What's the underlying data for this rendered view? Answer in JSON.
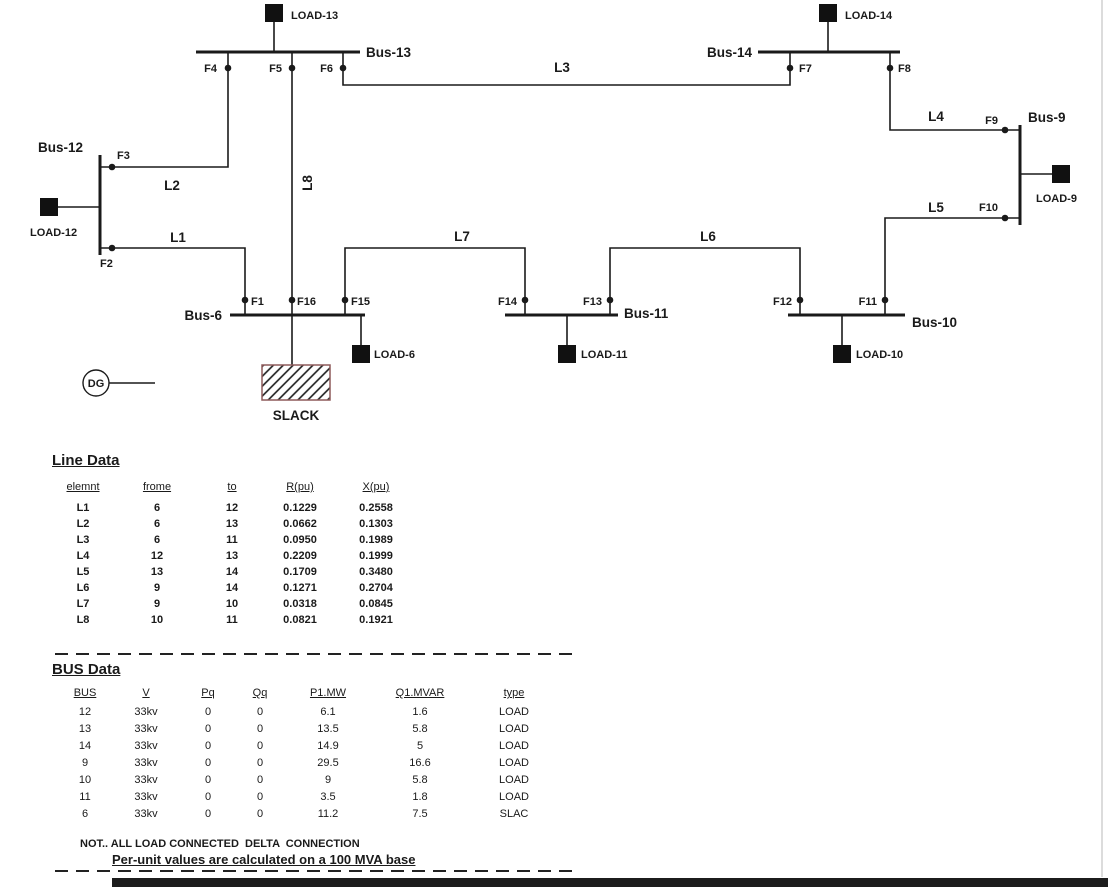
{
  "diagram": {
    "bus_labels": {
      "b6": "Bus-6",
      "b9": "Bus-9",
      "b10": "Bus-10",
      "b11": "Bus-11",
      "b12": "Bus-12",
      "b13": "Bus-13",
      "b14": "Bus-14"
    },
    "load_labels": {
      "l6": "LOAD-6",
      "l9": "LOAD-9",
      "l10": "LOAD-10",
      "l11": "LOAD-11",
      "l12": "LOAD-12",
      "l13": "LOAD-13",
      "l14": "LOAD-14"
    },
    "line_labels": {
      "l1": "L1",
      "l2": "L2",
      "l3": "L3",
      "l4": "L4",
      "l5": "L5",
      "l6": "L6",
      "l7": "L7",
      "l8": "L8"
    },
    "fault_labels": {
      "f1": "F1",
      "f2": "F2",
      "f3": "F3",
      "f4": "F4",
      "f5": "F5",
      "f6": "F6",
      "f7": "F7",
      "f8": "F8",
      "f9": "F9",
      "f10": "F10",
      "f11": "F11",
      "f12": "F12",
      "f13": "F13",
      "f14": "F14",
      "f15": "F15",
      "f16": "F16"
    },
    "dg_label": "DG",
    "slack_label": "SLACK"
  },
  "line_data": {
    "title": "Line Data",
    "headers": [
      "elemnt",
      "frome",
      "to",
      "R(pu)",
      "X(pu)"
    ],
    "rows": [
      [
        "L1",
        "6",
        "12",
        "0.1229",
        "0.2558"
      ],
      [
        "L2",
        "6",
        "13",
        "0.0662",
        "0.1303"
      ],
      [
        "L3",
        "6",
        "11",
        "0.0950",
        "0.1989"
      ],
      [
        "L4",
        "12",
        "13",
        "0.2209",
        "0.1999"
      ],
      [
        "L5",
        "13",
        "14",
        "0.1709",
        "0.3480"
      ],
      [
        "L6",
        "9",
        "14",
        "0.1271",
        "0.2704"
      ],
      [
        "L7",
        "9",
        "10",
        "0.0318",
        "0.0845"
      ],
      [
        "L8",
        "10",
        "11",
        "0.0821",
        "0.1921"
      ]
    ]
  },
  "bus_data": {
    "title": "BUS Data",
    "headers": [
      "BUS",
      "V",
      "Pq",
      "Qq",
      "P1.MW",
      "Q1.MVAR",
      "type"
    ],
    "rows": [
      [
        "12",
        "33kv",
        "0",
        "0",
        "6.1",
        "1.6",
        "LOAD"
      ],
      [
        "13",
        "33kv",
        "0",
        "0",
        "13.5",
        "5.8",
        "LOAD"
      ],
      [
        "14",
        "33kv",
        "0",
        "0",
        "14.9",
        "5",
        "LOAD"
      ],
      [
        "9",
        "33kv",
        "0",
        "0",
        "29.5",
        "16.6",
        "LOAD"
      ],
      [
        "10",
        "33kv",
        "0",
        "0",
        "9",
        "5.8",
        "LOAD"
      ],
      [
        "11",
        "33kv",
        "0",
        "0",
        "3.5",
        "1.8",
        "LOAD"
      ],
      [
        "6",
        "33kv",
        "0",
        "0",
        "11.2",
        "7.5",
        "SLAC"
      ]
    ]
  },
  "notes": {
    "note1": "NOT.. ALL LOAD CONNECTED  DELTA  CONNECTION",
    "note2": "Per-unit values are calculated on a 100 MVA base"
  },
  "colors": {
    "ink": "#1a1a1a",
    "slack_hatch": "#c97b7b",
    "slack_border": "#8d5a5a",
    "load_fill": "#111111"
  }
}
